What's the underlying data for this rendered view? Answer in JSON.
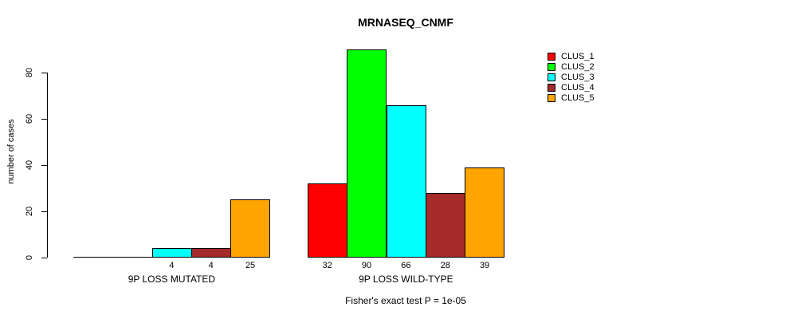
{
  "chart_data": {
    "type": "bar",
    "title": "MRNASEQ_CNMF",
    "ylabel": "number of cases",
    "ylim": [
      0,
      92
    ],
    "yticks": [
      0,
      20,
      40,
      60,
      80
    ],
    "grid": false,
    "legend_position": "top-right",
    "categories": [
      "9P LOSS MUTATED",
      "9P LOSS WILD-TYPE"
    ],
    "series": [
      {
        "name": "CLUS_1",
        "color": "#FF0000",
        "values": [
          0,
          32
        ]
      },
      {
        "name": "CLUS_2",
        "color": "#00FF00",
        "values": [
          0,
          90
        ]
      },
      {
        "name": "CLUS_3",
        "color": "#00FFFF",
        "values": [
          4,
          66
        ]
      },
      {
        "name": "CLUS_4",
        "color": "#A52A2A",
        "values": [
          4,
          28
        ]
      },
      {
        "name": "CLUS_5",
        "color": "#FFA500",
        "values": [
          25,
          39
        ]
      }
    ],
    "bar_value_labels": [
      [
        "",
        "",
        "4",
        "4",
        "25"
      ],
      [
        "32",
        "90",
        "66",
        "28",
        "39"
      ]
    ],
    "annotation": "Fisher's exact test P = 1e-05"
  }
}
